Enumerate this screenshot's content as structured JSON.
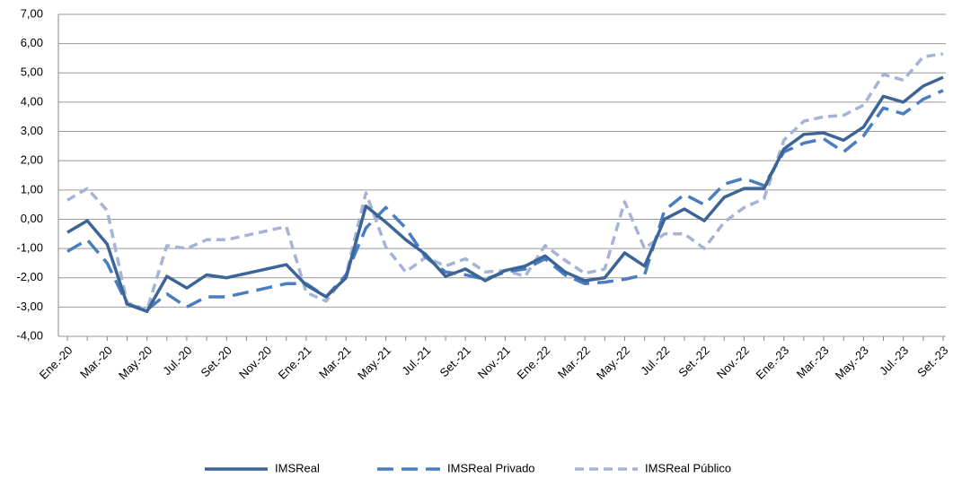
{
  "chart_data": {
    "type": "line",
    "categories": [
      "Ene.-20",
      null,
      "Mar.-20",
      null,
      "May.-20",
      null,
      "Jul.-20",
      null,
      "Set.-20",
      null,
      "Nov.-20",
      null,
      "Ene.-21",
      null,
      "Mar.-21",
      null,
      "May.-21",
      null,
      "Jul.-21",
      null,
      "Set.-21",
      null,
      "Nov.-21",
      null,
      "Ene.-22",
      null,
      "Mar.-22",
      null,
      "May.-22",
      null,
      "Jul.-22",
      null,
      "Set.-22",
      null,
      "Nov.-22",
      null,
      "Ene.-23",
      null,
      "Mar.-23",
      null,
      "May.-23",
      null,
      "Jul.-23",
      null,
      "Set.-23"
    ],
    "series": [
      {
        "name": "IMSReal",
        "color": "#3c6496",
        "dash": "solid",
        "values": [
          -0.45,
          -0.05,
          -0.85,
          -2.9,
          -3.15,
          -1.95,
          -2.35,
          -1.9,
          -2.0,
          -1.85,
          -1.7,
          -1.55,
          -2.25,
          -2.65,
          -2.0,
          0.45,
          -0.1,
          -0.7,
          -1.2,
          -1.95,
          -1.7,
          -2.1,
          -1.75,
          -1.6,
          -1.25,
          -1.8,
          -2.1,
          -2.0,
          -1.15,
          -1.6,
          0.0,
          0.35,
          -0.05,
          0.75,
          1.05,
          1.05,
          2.4,
          2.9,
          2.95,
          2.7,
          3.15,
          4.2,
          4.0,
          4.55,
          4.85
        ]
      },
      {
        "name": "IMSReal Privado",
        "color": "#4a7dbf",
        "dash": "long",
        "values": [
          -1.1,
          -0.7,
          -1.5,
          -2.9,
          -3.1,
          -2.55,
          -3.0,
          -2.65,
          -2.65,
          -2.5,
          -2.35,
          -2.2,
          -2.2,
          -2.65,
          -1.9,
          -0.3,
          0.4,
          -0.3,
          -1.3,
          -1.8,
          -1.9,
          -2.05,
          -1.8,
          -1.7,
          -1.35,
          -1.9,
          -2.2,
          -2.15,
          -2.05,
          -1.9,
          0.3,
          0.85,
          0.5,
          1.2,
          1.4,
          1.15,
          2.3,
          2.6,
          2.75,
          2.3,
          2.85,
          3.8,
          3.6,
          4.1,
          4.4
        ]
      },
      {
        "name": "IMSReal Público",
        "color": "#a5b4d4",
        "dash": "short",
        "values": [
          0.65,
          1.05,
          0.3,
          -2.85,
          -3.1,
          -0.9,
          -1.0,
          -0.7,
          -0.7,
          -0.55,
          -0.4,
          -0.25,
          -2.5,
          -2.8,
          -1.9,
          0.9,
          -0.95,
          -1.8,
          -1.3,
          -1.6,
          -1.35,
          -1.8,
          -1.75,
          -1.95,
          -0.9,
          -1.4,
          -1.85,
          -1.7,
          0.6,
          -1.0,
          -0.5,
          -0.5,
          -1.0,
          -0.1,
          0.4,
          0.7,
          2.7,
          3.35,
          3.5,
          3.55,
          3.9,
          4.95,
          4.75,
          5.55,
          5.65
        ]
      }
    ],
    "ylim": [
      -4,
      7
    ],
    "yticks": [
      {
        "value": -4,
        "label": "-4,00"
      },
      {
        "value": -3,
        "label": "-3,00"
      },
      {
        "value": -2,
        "label": "-2,00"
      },
      {
        "value": -1,
        "label": "-1,00"
      },
      {
        "value": 0,
        "label": "0,00"
      },
      {
        "value": 1,
        "label": "1,00"
      },
      {
        "value": 2,
        "label": "2,00"
      },
      {
        "value": 3,
        "label": "3,00"
      },
      {
        "value": 4,
        "label": "4,00"
      },
      {
        "value": 5,
        "label": "5,00"
      },
      {
        "value": 6,
        "label": "6,00"
      },
      {
        "value": 7,
        "label": "7,00"
      }
    ],
    "grid": true,
    "legend": "bottom"
  }
}
